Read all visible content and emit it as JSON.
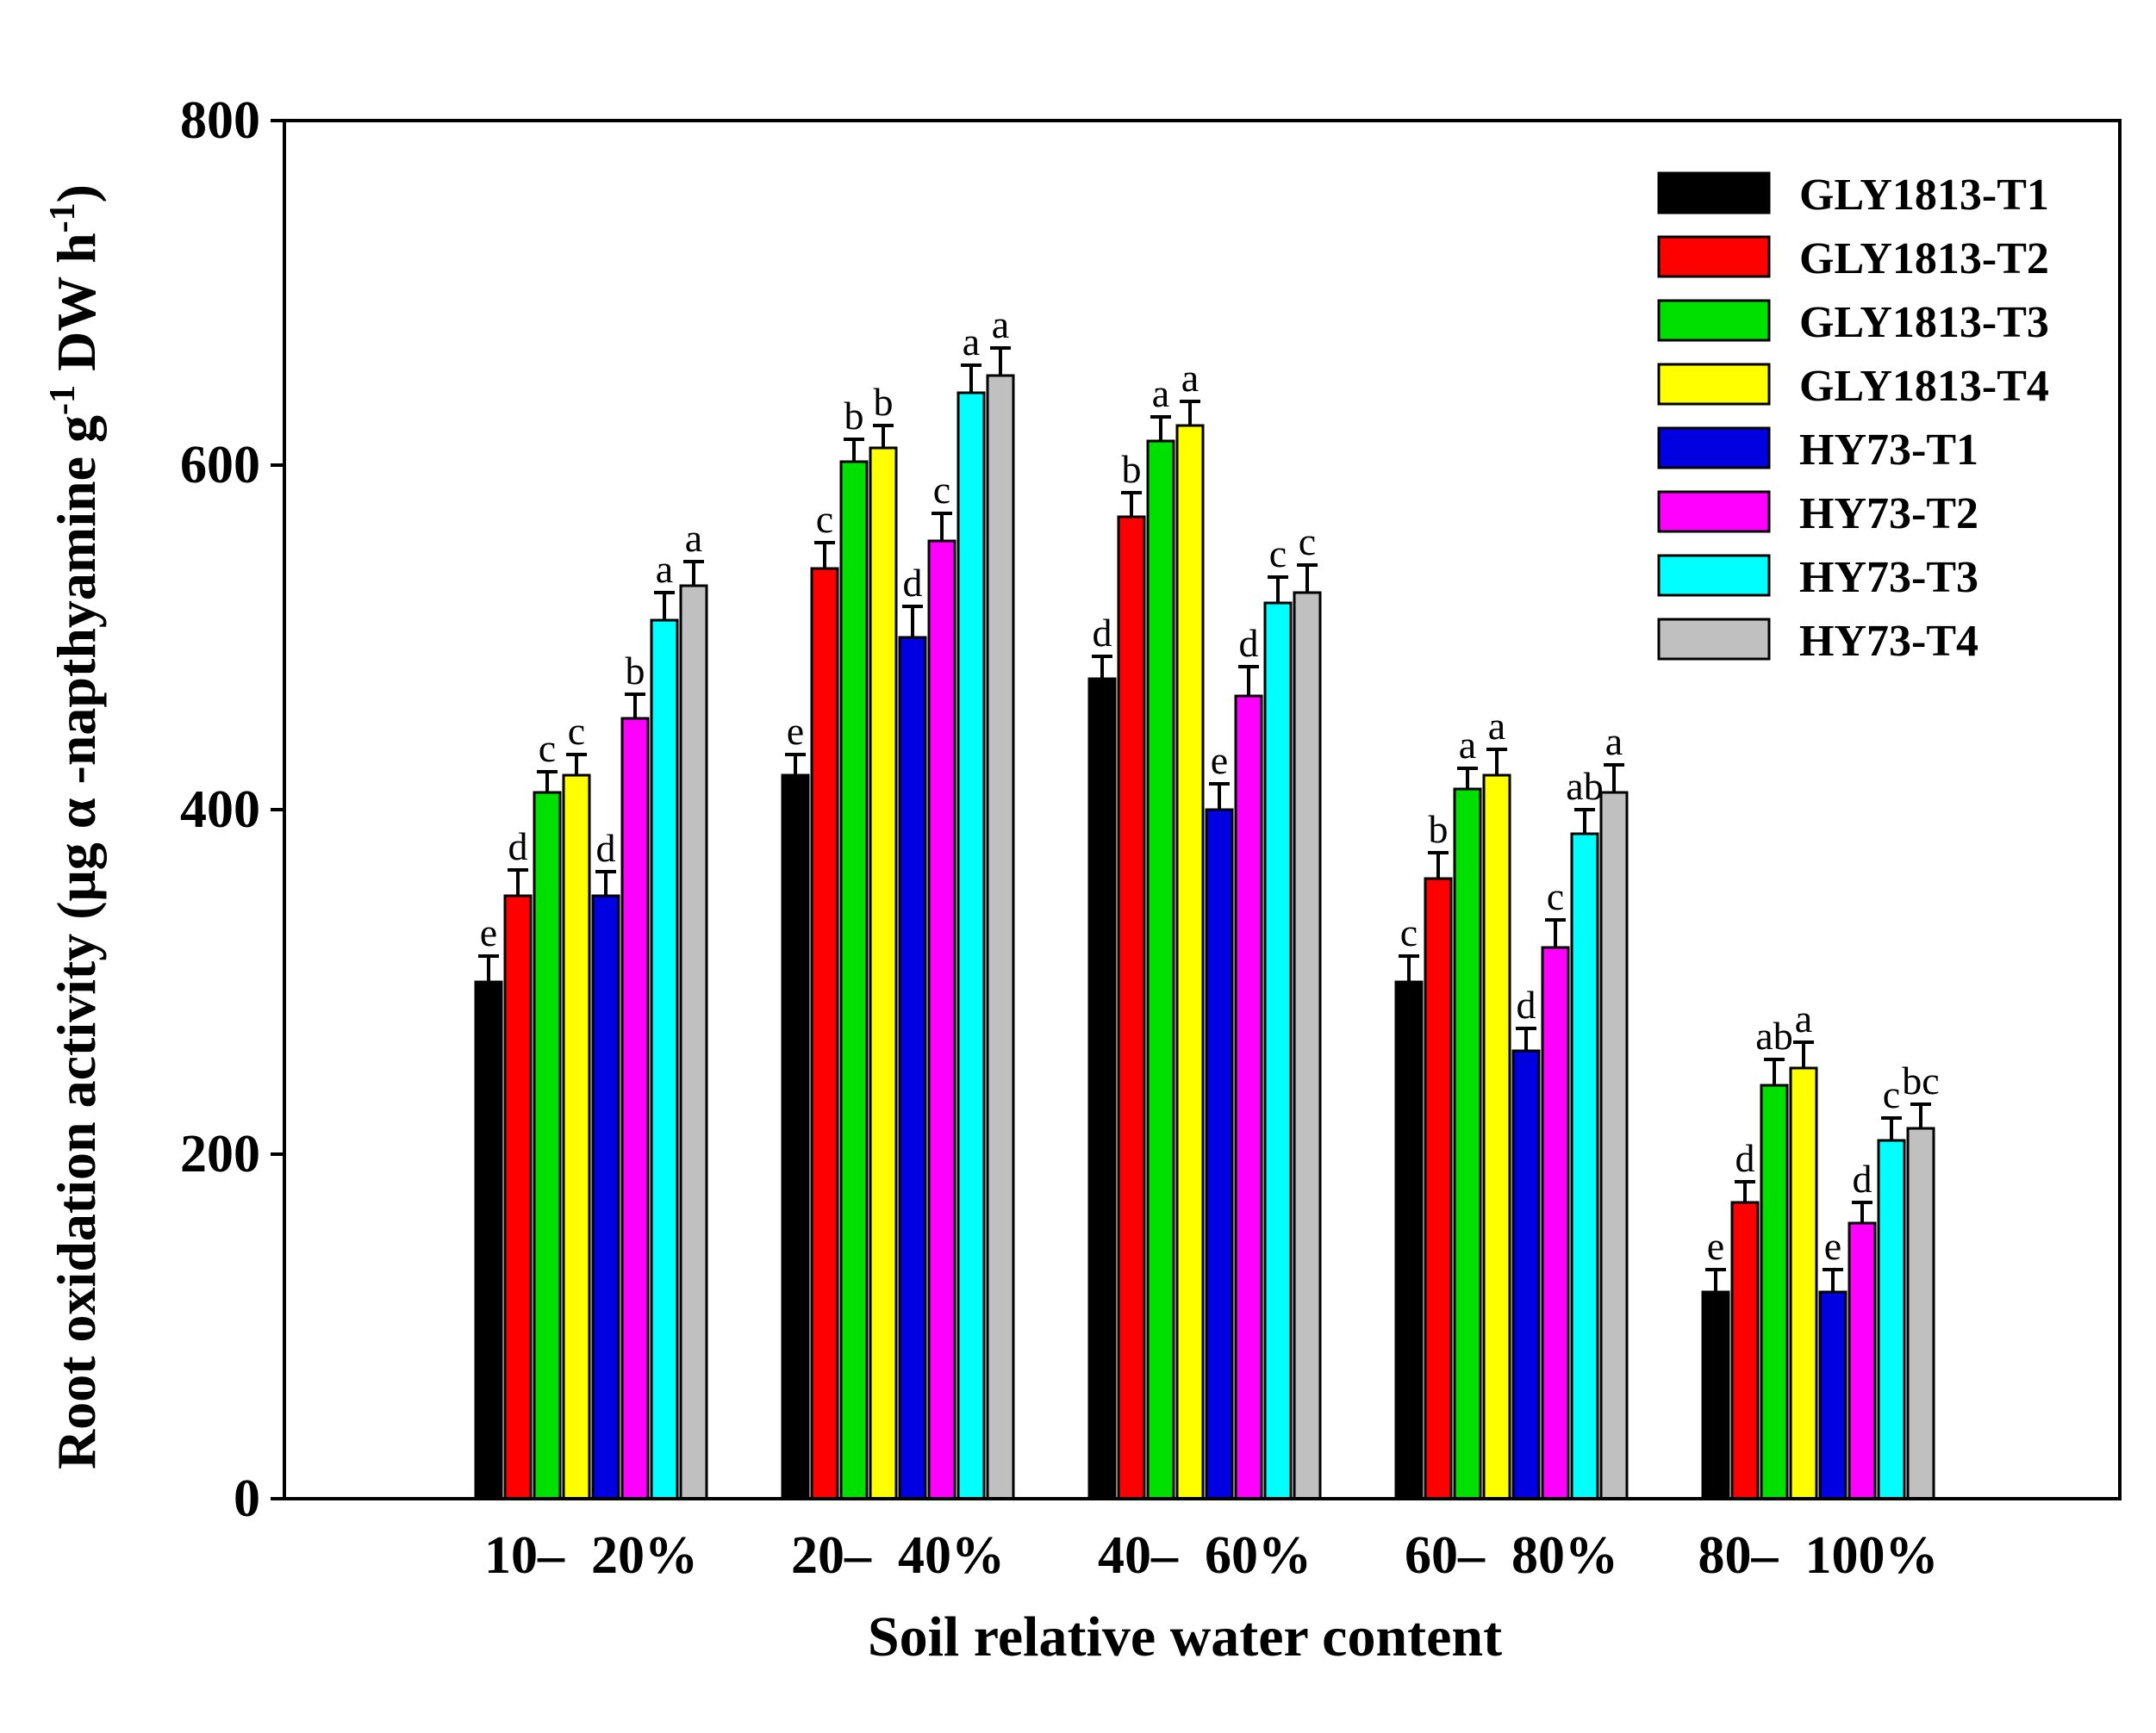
{
  "chart_data": {
    "type": "bar",
    "title": "",
    "xlabel": "Soil relative water content",
    "ylabel_main": "Root oxidation activity (μg α -napthyamine  g",
    "ylabel_sup1": "-1",
    "ylabel_mid": " DW h",
    "ylabel_sup2": "-1",
    "ylabel_end": ")",
    "ylim": [
      0,
      800
    ],
    "yticks": [
      0,
      200,
      400,
      600,
      800
    ],
    "categories": [
      "10–  20%",
      "20–  40%",
      "40–  60%",
      "60–  80%",
      "80–  100%"
    ],
    "legend_position": "top-right",
    "series": [
      {
        "name": "GLY1813-T1",
        "color": "#000000",
        "values": [
          300,
          420,
          476,
          300,
          120
        ],
        "errors": [
          15,
          12,
          13,
          15,
          13
        ],
        "letters": [
          "e",
          "e",
          "d",
          "c",
          "e"
        ]
      },
      {
        "name": "GLY1813-T2",
        "color": "#ff0000",
        "values": [
          350,
          540,
          570,
          360,
          172
        ],
        "errors": [
          15,
          15,
          14,
          15,
          12
        ],
        "letters": [
          "d",
          "c",
          "b",
          "b",
          "d"
        ]
      },
      {
        "name": "GLY1813-T3",
        "color": "#00e000",
        "values": [
          410,
          602,
          614,
          412,
          240
        ],
        "errors": [
          12,
          13,
          14,
          12,
          15
        ],
        "letters": [
          "c",
          "b",
          "a",
          "a",
          "ab"
        ]
      },
      {
        "name": "GLY1813-T4",
        "color": "#ffff00",
        "values": [
          420,
          610,
          623,
          420,
          250
        ],
        "errors": [
          12,
          13,
          14,
          15,
          15
        ],
        "letters": [
          "c",
          "b",
          "a",
          "a",
          "a"
        ]
      },
      {
        "name": "HY73-T1",
        "color": "#0000e0",
        "values": [
          350,
          500,
          400,
          260,
          120
        ],
        "errors": [
          14,
          18,
          15,
          13,
          13
        ],
        "letters": [
          "d",
          "d",
          "e",
          "d",
          "e"
        ]
      },
      {
        "name": "HY73-T2",
        "color": "#ff00ff",
        "values": [
          453,
          556,
          466,
          320,
          160
        ],
        "errors": [
          14,
          16,
          17,
          16,
          12
        ],
        "letters": [
          "b",
          "c",
          "d",
          "c",
          "d"
        ]
      },
      {
        "name": "HY73-T3",
        "color": "#00ffff",
        "values": [
          510,
          642,
          520,
          386,
          208
        ],
        "errors": [
          16,
          16,
          15,
          14,
          13
        ],
        "letters": [
          "a",
          "a",
          "c",
          "ab",
          "c"
        ]
      },
      {
        "name": "HY73-T4",
        "color": "#c0c0c0",
        "values": [
          530,
          652,
          526,
          410,
          215
        ],
        "errors": [
          14,
          16,
          16,
          16,
          14
        ],
        "letters": [
          "a",
          "a",
          "c",
          "a",
          "bc"
        ]
      }
    ]
  }
}
